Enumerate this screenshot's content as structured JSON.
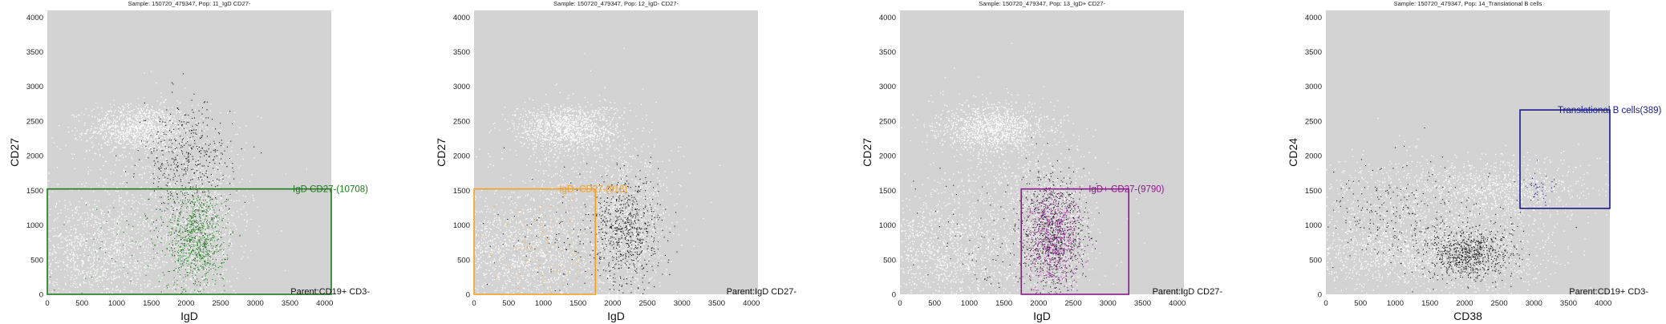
{
  "chart_data": [
    {
      "type": "scatter",
      "title": "Sample: 150720_479347, Pop: 11_IgD CD27-",
      "xlabel": "IgD",
      "ylabel": "CD27",
      "xlim": [
        0,
        4096
      ],
      "ylim": [
        0,
        4096
      ],
      "x_ticks": [
        0,
        500,
        1000,
        1500,
        2000,
        2500,
        3000,
        3500,
        4000
      ],
      "y_ticks": [
        0,
        500,
        1000,
        1500,
        2000,
        2500,
        3000,
        3500,
        4000
      ],
      "gate": {
        "label": "IgD CD27-(10708)",
        "color": "#1a7a1a",
        "x": [
          0,
          4096
        ],
        "y": [
          0,
          1520
        ]
      },
      "parent_label": "Parent:CD19+ CD3-",
      "highlight_color": "#1a7a1a"
    },
    {
      "type": "scatter",
      "title": "Sample: 150720_479347, Pop: 12_IgD- CD27-",
      "xlabel": "IgD",
      "ylabel": "CD27",
      "xlim": [
        0,
        4096
      ],
      "ylim": [
        0,
        4096
      ],
      "x_ticks": [
        0,
        500,
        1000,
        1500,
        2000,
        2500,
        3000,
        3500,
        4000
      ],
      "y_ticks": [
        0,
        500,
        1000,
        1500,
        2000,
        2500,
        3000,
        3500,
        4000
      ],
      "gate": {
        "label": "IgD- CD27-(918)",
        "color": "#f5a023",
        "x": [
          0,
          1750
        ],
        "y": [
          0,
          1520
        ]
      },
      "parent_label": "Parent:IgD CD27-",
      "highlight_color": "#f5a023"
    },
    {
      "type": "scatter",
      "title": "Sample: 150720_479347, Pop: 13_IgD+ CD27-",
      "xlabel": "IgD",
      "ylabel": "CD27",
      "xlim": [
        0,
        4096
      ],
      "ylim": [
        0,
        4096
      ],
      "x_ticks": [
        0,
        500,
        1000,
        1500,
        2000,
        2500,
        3000,
        3500,
        4000
      ],
      "y_ticks": [
        0,
        500,
        1000,
        1500,
        2000,
        2500,
        3000,
        3500,
        4000
      ],
      "gate": {
        "label": "IgD+ CD27-(9790)",
        "color": "#8a1a8a",
        "x": [
          1750,
          3300
        ],
        "y": [
          0,
          1520
        ]
      },
      "parent_label": "Parent:IgD CD27-",
      "highlight_color": "#8a1a8a"
    },
    {
      "type": "scatter",
      "title": "Sample: 150720_479347, Pop: 14_Translational B cells",
      "xlabel": "CD38",
      "ylabel": "CD24",
      "xlim": [
        0,
        4096
      ],
      "ylim": [
        0,
        4096
      ],
      "x_ticks": [
        0,
        500,
        1000,
        1500,
        2000,
        2500,
        3000,
        3500,
        4000
      ],
      "y_ticks": [
        0,
        500,
        1000,
        1500,
        2000,
        2500,
        3000,
        3500,
        4000
      ],
      "gate": {
        "label": "Translational B cells(389)",
        "color": "#1a1a8a",
        "x": [
          2800,
          4096
        ],
        "y": [
          1240,
          2660
        ]
      },
      "parent_label": "Parent:CD19+ CD3-",
      "highlight_color": "#1a1a8a"
    }
  ]
}
